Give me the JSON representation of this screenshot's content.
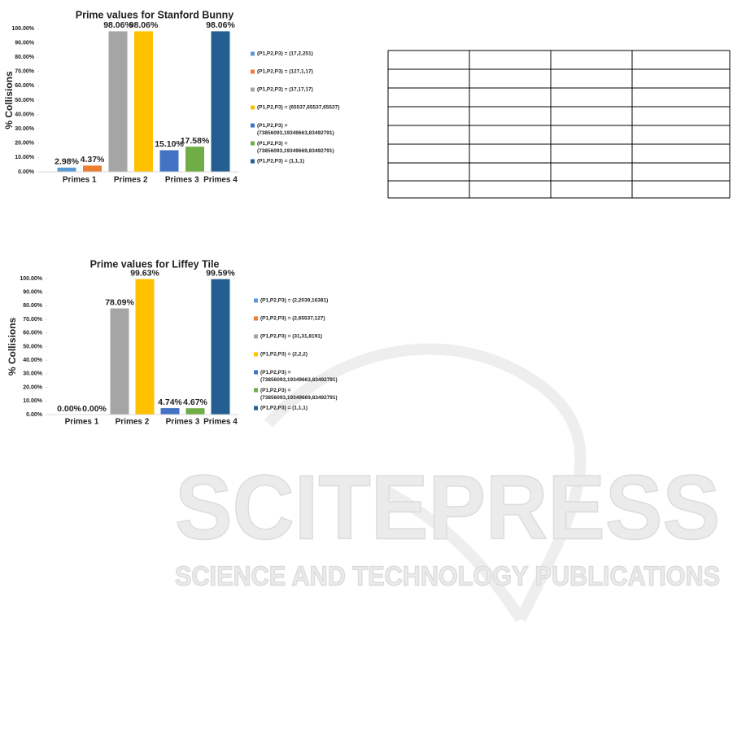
{
  "chart_data": [
    {
      "type": "bar",
      "title": "Prime values for Stanford  Bunny",
      "y_label": "% Collisions",
      "categories": [
        "Primes 1",
        "Primes 2",
        "Primes 3",
        "Primes 4"
      ],
      "ylim": [
        0,
        100
      ],
      "yticks": [
        {
          "value": 0,
          "label": "0.00%"
        },
        {
          "value": 10,
          "label": "10.00%"
        },
        {
          "value": 20,
          "label": "20.00%"
        },
        {
          "value": 30,
          "label": "30.00%"
        },
        {
          "value": 40,
          "label": "40.00%"
        },
        {
          "value": 50,
          "label": "50.00%"
        },
        {
          "value": 60,
          "label": "60.00%"
        },
        {
          "value": 70,
          "label": "70.00%"
        },
        {
          "value": 80,
          "label": "80.00%"
        },
        {
          "value": 90,
          "label": "90.00%"
        },
        {
          "value": 100,
          "label": "100.00%"
        }
      ],
      "series": [
        {
          "name": "(P1,P2,P3) = (17,2,251)",
          "color": "#5b9bd5",
          "values": [
            2.98,
            null,
            null,
            null
          ],
          "value_labels": [
            "2.98%",
            null,
            null,
            null
          ]
        },
        {
          "name": "(P1,P2,P3) = (127,1,17)",
          "color": "#ed7d31",
          "values": [
            4.37,
            null,
            null,
            null
          ],
          "value_labels": [
            "4.37%",
            null,
            null,
            null
          ]
        },
        {
          "name": "(P1,P2,P3) = (17,17,17)",
          "color": "#a5a5a5",
          "values": [
            null,
            98.06,
            null,
            null
          ],
          "value_labels": [
            null,
            "98.06%",
            null,
            null
          ]
        },
        {
          "name": "(P1,P2,P3) = (65537,65537,65537)",
          "color": "#ffc000",
          "values": [
            null,
            98.06,
            null,
            null
          ],
          "value_labels": [
            null,
            "98.06%",
            null,
            null
          ]
        },
        {
          "name": "(P1,P2,P3) = (73856093,19349663,83492791)",
          "color": "#4472c4",
          "values": [
            null,
            null,
            15.1,
            null
          ],
          "value_labels": [
            null,
            null,
            "15.10%",
            null
          ]
        },
        {
          "name": "(P1,P2,P3) = (73856093,19349669,83492791)",
          "color": "#70ad47",
          "values": [
            null,
            null,
            17.58,
            null
          ],
          "value_labels": [
            null,
            null,
            "17.58%",
            null
          ]
        },
        {
          "name": "(P1,P2,P3) = (1,1,1)",
          "color": "#255e91",
          "values": [
            null,
            null,
            null,
            98.06
          ],
          "value_labels": [
            null,
            null,
            null,
            "98.06%"
          ]
        }
      ]
    },
    {
      "type": "bar",
      "title": "Prime values for Liffey Tile",
      "y_label": "% Collisions",
      "categories": [
        "Primes 1",
        "Primes 2",
        "Primes 3",
        "Primes 4"
      ],
      "ylim": [
        0,
        100
      ],
      "yticks": [
        {
          "value": 0,
          "label": "0.00%"
        },
        {
          "value": 10,
          "label": "10.00%"
        },
        {
          "value": 20,
          "label": "20.00%"
        },
        {
          "value": 30,
          "label": "30.00%"
        },
        {
          "value": 40,
          "label": "40.00%"
        },
        {
          "value": 50,
          "label": "50.00%"
        },
        {
          "value": 60,
          "label": "60.00%"
        },
        {
          "value": 70,
          "label": "70.00%"
        },
        {
          "value": 80,
          "label": "80.00%"
        },
        {
          "value": 90,
          "label": "90.00%"
        },
        {
          "value": 100,
          "label": "100.00%"
        }
      ],
      "series": [
        {
          "name": "(P1,P2,P3) = (2,2039,16381)",
          "color": "#5b9bd5",
          "values": [
            0,
            null,
            null,
            null
          ],
          "value_labels": [
            "0.00%",
            null,
            null,
            null
          ]
        },
        {
          "name": "(P1,P2,P3) = (2,65537,127)",
          "color": "#ed7d31",
          "values": [
            0,
            null,
            null,
            null
          ],
          "value_labels": [
            "0.00%",
            null,
            null,
            null
          ]
        },
        {
          "name": "(P1,P2,P3) = (31,31,8191)",
          "color": "#a5a5a5",
          "values": [
            null,
            78.09,
            null,
            null
          ],
          "value_labels": [
            null,
            "78.09%",
            null,
            null
          ]
        },
        {
          "name": "(P1,P2,P3) = (2,2,2)",
          "color": "#ffc000",
          "values": [
            null,
            99.63,
            null,
            null
          ],
          "value_labels": [
            null,
            "99.63%",
            null,
            null
          ]
        },
        {
          "name": "(P1,P2,P3) = (73856093,19349663,83492791)",
          "color": "#4472c4",
          "values": [
            null,
            null,
            4.74,
            null
          ],
          "value_labels": [
            null,
            null,
            "4.74%",
            null
          ]
        },
        {
          "name": "(P1,P2,P3) = (73856093,19349669,83492791)",
          "color": "#70ad47",
          "values": [
            null,
            null,
            4.67,
            null
          ],
          "value_labels": [
            null,
            null,
            "4.67%",
            null
          ]
        },
        {
          "name": "(P1,P2,P3) = (1,1,1)",
          "color": "#255e91",
          "values": [
            null,
            null,
            null,
            99.59
          ],
          "value_labels": [
            null,
            null,
            null,
            "99.59%"
          ]
        }
      ]
    }
  ],
  "watermark": {
    "title": "SCITEPRESS",
    "subtitle": "SCIENCE AND TECHNOLOGY PUBLICATIONS"
  }
}
